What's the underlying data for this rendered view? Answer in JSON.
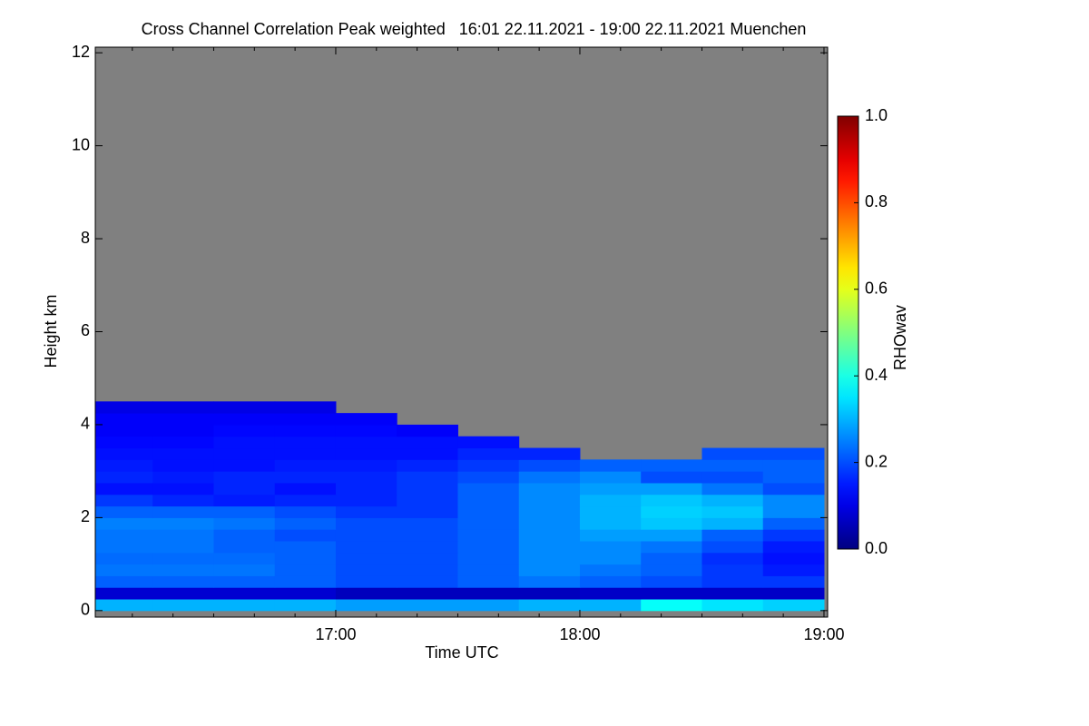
{
  "chart_data": {
    "type": "heatmap",
    "title": "Cross Channel Correlation Peak weighted   16:01 22.11.2021 - 19:00 22.11.2021 Muenchen",
    "xlabel": "Time UTC",
    "ylabel": "Height km",
    "colorbar_label": "RHOwav",
    "colormap": "jet",
    "nan_color": "#808080",
    "xlim": [
      16.015,
      19.015
    ],
    "xticks": [
      {
        "value": 17,
        "label": "17:00"
      },
      {
        "value": 18,
        "label": "18:00"
      },
      {
        "value": 19,
        "label": "19:00"
      }
    ],
    "xminorticks": [
      16.1667,
      16.3333,
      16.5,
      16.6667,
      16.8333,
      17.1667,
      17.3333,
      17.5,
      17.6667,
      17.8333,
      18.1667,
      18.3333,
      18.5,
      18.6667,
      18.8333
    ],
    "ylim": [
      -0.14,
      12.12
    ],
    "yticks": [
      0,
      2,
      4,
      6,
      8,
      10,
      12
    ],
    "clim": [
      0,
      1
    ],
    "cticks": [
      {
        "value": 0,
        "label": "0.0"
      },
      {
        "value": 0.2,
        "label": "0.2"
      },
      {
        "value": 0.4,
        "label": "0.4"
      },
      {
        "value": 0.6,
        "label": "0.6"
      },
      {
        "value": 0.8,
        "label": "0.8"
      },
      {
        "value": 1,
        "label": "1.0"
      }
    ],
    "x": [
      16.125,
      16.375,
      16.625,
      16.875,
      17.125,
      17.375,
      17.625,
      17.875,
      18.125,
      18.375,
      18.625,
      18.875
    ],
    "y": [
      0.125,
      0.375,
      0.625,
      0.875,
      1.125,
      1.375,
      1.625,
      1.875,
      2.125,
      2.375,
      2.625,
      2.875,
      3.125,
      3.375,
      3.625,
      3.875,
      4.125,
      4.375
    ],
    "z": [
      [
        0.3,
        0.3,
        0.3,
        0.3,
        0.28,
        0.28,
        0.28,
        0.3,
        0.3,
        0.38,
        0.35,
        0.33
      ],
      [
        0.08,
        0.08,
        0.08,
        0.08,
        0.06,
        0.06,
        0.06,
        0.06,
        0.07,
        0.07,
        0.07,
        0.07
      ],
      [
        0.22,
        0.22,
        0.22,
        0.22,
        0.2,
        0.2,
        0.22,
        0.24,
        0.22,
        0.2,
        0.18,
        0.18
      ],
      [
        0.24,
        0.24,
        0.24,
        0.22,
        0.2,
        0.2,
        0.22,
        0.26,
        0.24,
        0.22,
        0.18,
        0.15
      ],
      [
        0.23,
        0.23,
        0.23,
        0.22,
        0.2,
        0.2,
        0.22,
        0.26,
        0.26,
        0.22,
        0.17,
        0.14
      ],
      [
        0.24,
        0.24,
        0.22,
        0.22,
        0.2,
        0.2,
        0.22,
        0.26,
        0.26,
        0.24,
        0.2,
        0.15
      ],
      [
        0.24,
        0.24,
        0.22,
        0.2,
        0.2,
        0.2,
        0.22,
        0.26,
        0.28,
        0.28,
        0.22,
        0.18
      ],
      [
        0.25,
        0.25,
        0.24,
        0.22,
        0.2,
        0.2,
        0.22,
        0.26,
        0.3,
        0.32,
        0.3,
        0.22
      ],
      [
        0.22,
        0.22,
        0.22,
        0.2,
        0.18,
        0.18,
        0.22,
        0.26,
        0.3,
        0.33,
        0.32,
        0.26
      ],
      [
        0.18,
        0.16,
        0.15,
        0.16,
        0.16,
        0.18,
        0.22,
        0.26,
        0.3,
        0.32,
        0.3,
        0.26
      ],
      [
        0.14,
        0.14,
        0.16,
        0.14,
        0.16,
        0.18,
        0.22,
        0.26,
        0.28,
        0.28,
        0.24,
        0.2
      ],
      [
        0.16,
        0.15,
        0.16,
        0.16,
        0.16,
        0.18,
        0.2,
        0.24,
        0.26,
        0.2,
        0.2,
        0.22
      ],
      [
        0.15,
        0.14,
        0.14,
        0.15,
        0.15,
        0.16,
        0.18,
        0.2,
        0.22,
        0.22,
        0.22,
        0.22
      ],
      [
        0.14,
        0.14,
        0.14,
        0.14,
        0.14,
        0.14,
        0.16,
        0.16,
        null,
        null,
        0.2,
        0.2
      ],
      [
        0.13,
        0.13,
        0.14,
        0.14,
        0.14,
        0.14,
        0.14,
        null,
        null,
        null,
        null,
        null
      ],
      [
        0.12,
        0.12,
        0.13,
        0.13,
        0.13,
        0.12,
        null,
        null,
        null,
        null,
        null,
        null
      ],
      [
        0.12,
        0.12,
        0.12,
        0.12,
        0.12,
        null,
        null,
        null,
        null,
        null,
        null,
        null
      ],
      [
        0.1,
        0.1,
        0.1,
        0.1,
        null,
        null,
        null,
        null,
        null,
        null,
        null,
        null
      ]
    ]
  }
}
